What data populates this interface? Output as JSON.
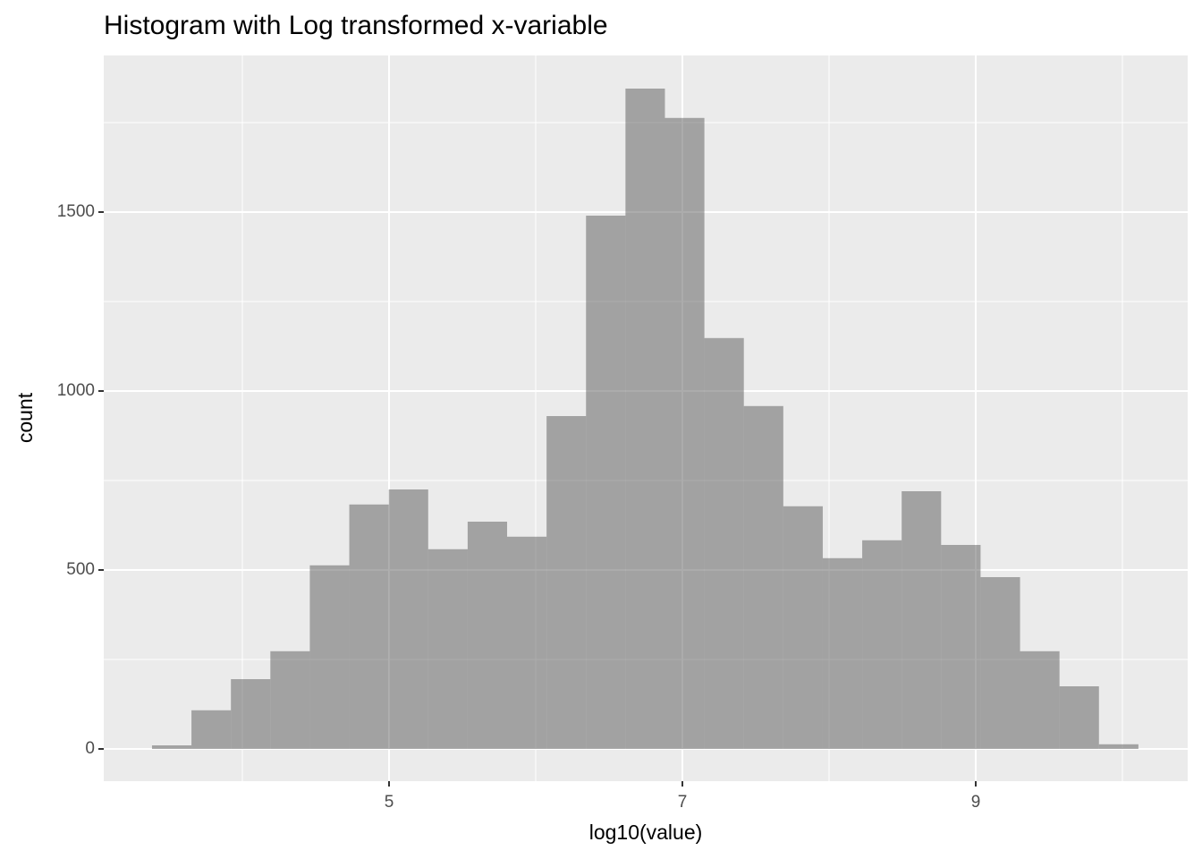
{
  "chart_data": {
    "type": "histogram",
    "title": "Histogram with Log transformed x-variable",
    "x_label": "log10(value)",
    "y_label": "count",
    "bins": [
      3.384,
      3.653,
      3.922,
      4.191,
      4.46,
      4.729,
      4.998,
      5.267,
      5.536,
      5.805,
      6.074,
      6.343,
      6.612,
      6.881,
      7.15,
      7.419,
      7.688,
      7.957,
      8.226,
      8.495,
      8.764,
      9.033,
      9.302,
      9.571,
      9.84,
      10.109
    ],
    "values": [
      10,
      108,
      195,
      273,
      513,
      683,
      725,
      558,
      635,
      593,
      930,
      1490,
      1845,
      1763,
      1148,
      958,
      678,
      533,
      583,
      720,
      570,
      480,
      273,
      175,
      13
    ],
    "color": "#5a5a5a",
    "alpha": 0.5,
    "xlim": [
      3.055,
      10.445
    ],
    "xticks": [
      5,
      7,
      9
    ],
    "ylim": [
      -90,
      1937.5
    ],
    "yticks": [
      0,
      500,
      1000,
      1500
    ],
    "grid": true
  }
}
